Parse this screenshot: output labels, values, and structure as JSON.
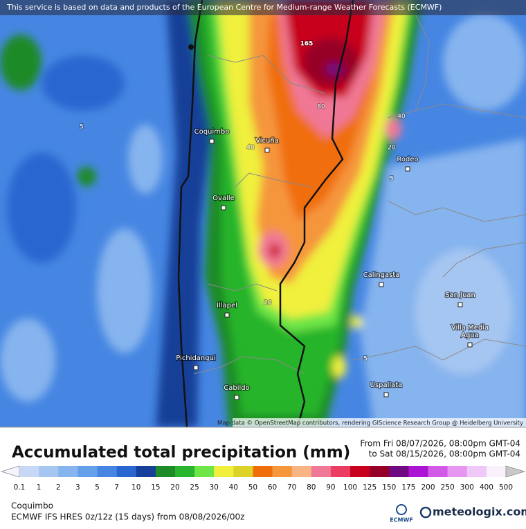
{
  "header": {
    "notice": "This service is based on data and products of the European Centre for Medium-range Weather Forecasts (ECMWF)"
  },
  "map": {
    "places": [
      [
        "Coquimbo"
      ],
      [
        "Vicuña"
      ],
      [
        "Rodeo"
      ],
      [
        "Ovalle"
      ],
      [
        "Calingasta"
      ],
      [
        "San Juan"
      ],
      [
        "Illapel"
      ],
      [
        "Villa Media",
        "Agua"
      ],
      [
        "Pichidangui"
      ],
      [
        "Cabildo"
      ],
      [
        "Uspallata"
      ]
    ],
    "contour_labels": [
      165,
      80,
      40,
      20,
      5,
      40,
      5,
      20,
      5
    ],
    "attribution": "Map data © OpenStreetMap contributors, rendering GIScience Research Group @ Heidelberg University"
  },
  "title": "Accumulated total precipitation (mm)",
  "period": {
    "from": "From Fri 08/07/2026, 08:00pm GMT-04",
    "to": "to Sat 08/15/2026, 08:00pm GMT-04"
  },
  "legend": {
    "labels": [
      0.1,
      1,
      2,
      3,
      5,
      7,
      10,
      15,
      20,
      25,
      30,
      40,
      50,
      60,
      70,
      80,
      90,
      100,
      125,
      150,
      175,
      200,
      250,
      300,
      400,
      500
    ],
    "below_color": "#f4f4fc",
    "colors": [
      "#c6d8f6",
      "#a6c6f2",
      "#86b4ee",
      "#64a0ea",
      "#4686e2",
      "#2a66d0",
      "#153f98",
      "#1e8a28",
      "#28b42c",
      "#6ee646",
      "#f0f03c",
      "#dcd228",
      "#f06e0a",
      "#f5963c",
      "#f8b482",
      "#f07896",
      "#eb3c64",
      "#c8001e",
      "#960028",
      "#6e0a82",
      "#aa14d2",
      "#d25ae6",
      "#e696f0",
      "#f0c8f8",
      "#faf0fc"
    ],
    "above_color": "#c8c8c8"
  },
  "footer": {
    "location": "Coquimbo",
    "model": "ECMWF IFS HRES 0z/12z (15 days) from  08/08/2026/00z"
  },
  "logos": {
    "ecmwf": "ECMWF",
    "meteologix": "meteologix.com"
  }
}
